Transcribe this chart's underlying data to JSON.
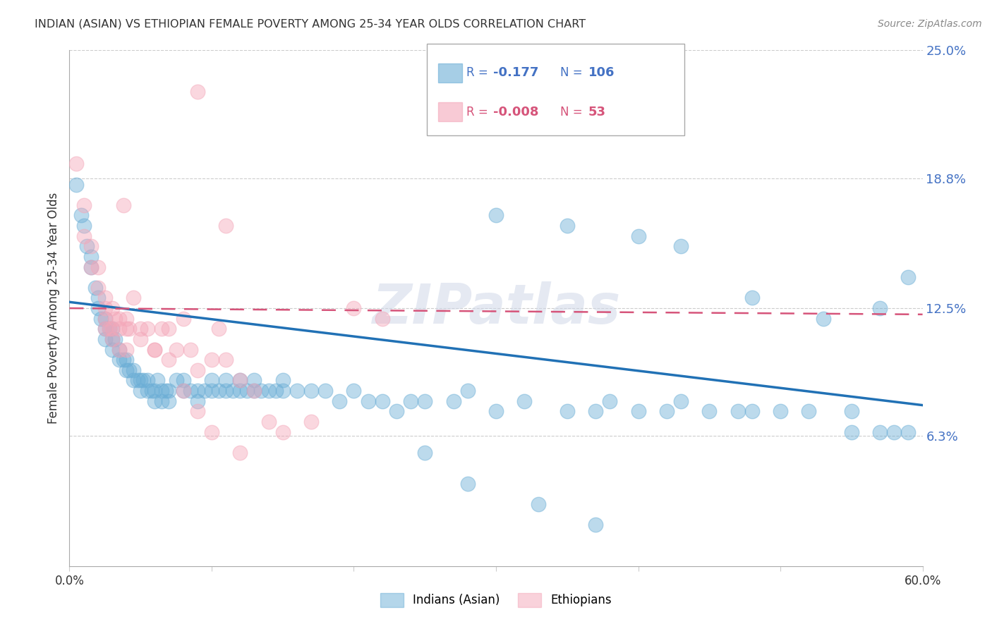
{
  "title": "INDIAN (ASIAN) VS ETHIOPIAN FEMALE POVERTY AMONG 25-34 YEAR OLDS CORRELATION CHART",
  "source": "Source: ZipAtlas.com",
  "ylabel": "Female Poverty Among 25-34 Year Olds",
  "xlim": [
    0.0,
    0.6
  ],
  "ylim": [
    0.0,
    0.25
  ],
  "xticks": [
    0.0,
    0.1,
    0.2,
    0.3,
    0.4,
    0.5,
    0.6
  ],
  "xticklabels": [
    "0.0%",
    "",
    "",
    "",
    "",
    "",
    "60.0%"
  ],
  "ytick_right_labels": [
    "25.0%",
    "18.8%",
    "12.5%",
    "6.3%"
  ],
  "ytick_right_values": [
    0.25,
    0.188,
    0.125,
    0.063
  ],
  "grid_color": "#cccccc",
  "background_color": "#ffffff",
  "blue_color": "#6baed6",
  "pink_color": "#f4a7b9",
  "blue_line_color": "#2171b5",
  "pink_line_color": "#d6547a",
  "watermark": "ZIPatlas",
  "legend_R_blue": "-0.177",
  "legend_N_blue": "106",
  "legend_R_pink": "-0.008",
  "legend_N_pink": "53",
  "legend_label_blue": "Indians (Asian)",
  "legend_label_pink": "Ethiopians",
  "blue_x": [
    0.005,
    0.008,
    0.01,
    0.012,
    0.015,
    0.015,
    0.018,
    0.02,
    0.02,
    0.022,
    0.025,
    0.025,
    0.025,
    0.028,
    0.03,
    0.03,
    0.03,
    0.032,
    0.035,
    0.035,
    0.038,
    0.04,
    0.04,
    0.042,
    0.045,
    0.045,
    0.048,
    0.05,
    0.05,
    0.052,
    0.055,
    0.055,
    0.058,
    0.06,
    0.06,
    0.062,
    0.065,
    0.065,
    0.068,
    0.07,
    0.07,
    0.075,
    0.08,
    0.08,
    0.085,
    0.09,
    0.09,
    0.095,
    0.1,
    0.1,
    0.105,
    0.11,
    0.11,
    0.115,
    0.12,
    0.12,
    0.125,
    0.13,
    0.13,
    0.135,
    0.14,
    0.145,
    0.15,
    0.15,
    0.16,
    0.17,
    0.18,
    0.19,
    0.2,
    0.21,
    0.22,
    0.23,
    0.24,
    0.25,
    0.27,
    0.28,
    0.3,
    0.32,
    0.35,
    0.37,
    0.38,
    0.4,
    0.42,
    0.43,
    0.45,
    0.47,
    0.48,
    0.5,
    0.52,
    0.55,
    0.55,
    0.57,
    0.58,
    0.59,
    0.3,
    0.35,
    0.4,
    0.43,
    0.48,
    0.53,
    0.57,
    0.59,
    0.25,
    0.28,
    0.33,
    0.37
  ],
  "blue_y": [
    0.185,
    0.17,
    0.165,
    0.155,
    0.145,
    0.15,
    0.135,
    0.13,
    0.125,
    0.12,
    0.12,
    0.115,
    0.11,
    0.115,
    0.115,
    0.11,
    0.105,
    0.11,
    0.105,
    0.1,
    0.1,
    0.1,
    0.095,
    0.095,
    0.09,
    0.095,
    0.09,
    0.09,
    0.085,
    0.09,
    0.09,
    0.085,
    0.085,
    0.085,
    0.08,
    0.09,
    0.085,
    0.08,
    0.085,
    0.085,
    0.08,
    0.09,
    0.085,
    0.09,
    0.085,
    0.085,
    0.08,
    0.085,
    0.085,
    0.09,
    0.085,
    0.09,
    0.085,
    0.085,
    0.085,
    0.09,
    0.085,
    0.085,
    0.09,
    0.085,
    0.085,
    0.085,
    0.09,
    0.085,
    0.085,
    0.085,
    0.085,
    0.08,
    0.085,
    0.08,
    0.08,
    0.075,
    0.08,
    0.08,
    0.08,
    0.085,
    0.075,
    0.08,
    0.075,
    0.075,
    0.08,
    0.075,
    0.075,
    0.08,
    0.075,
    0.075,
    0.075,
    0.075,
    0.075,
    0.075,
    0.065,
    0.065,
    0.065,
    0.065,
    0.17,
    0.165,
    0.16,
    0.155,
    0.13,
    0.12,
    0.125,
    0.14,
    0.055,
    0.04,
    0.03,
    0.02
  ],
  "pink_x": [
    0.005,
    0.01,
    0.01,
    0.015,
    0.015,
    0.02,
    0.02,
    0.025,
    0.025,
    0.025,
    0.028,
    0.03,
    0.03,
    0.032,
    0.035,
    0.035,
    0.038,
    0.04,
    0.04,
    0.042,
    0.045,
    0.05,
    0.055,
    0.06,
    0.065,
    0.07,
    0.075,
    0.08,
    0.085,
    0.09,
    0.1,
    0.105,
    0.11,
    0.12,
    0.13,
    0.14,
    0.15,
    0.17,
    0.2,
    0.22,
    0.09,
    0.11,
    0.025,
    0.03,
    0.035,
    0.04,
    0.05,
    0.06,
    0.07,
    0.08,
    0.09,
    0.1,
    0.12
  ],
  "pink_y": [
    0.195,
    0.175,
    0.16,
    0.155,
    0.145,
    0.145,
    0.135,
    0.13,
    0.125,
    0.12,
    0.115,
    0.125,
    0.115,
    0.12,
    0.115,
    0.12,
    0.175,
    0.12,
    0.115,
    0.115,
    0.13,
    0.115,
    0.115,
    0.105,
    0.115,
    0.115,
    0.105,
    0.12,
    0.105,
    0.095,
    0.1,
    0.115,
    0.1,
    0.09,
    0.085,
    0.07,
    0.065,
    0.07,
    0.125,
    0.12,
    0.23,
    0.165,
    0.115,
    0.11,
    0.105,
    0.105,
    0.11,
    0.105,
    0.1,
    0.085,
    0.075,
    0.065,
    0.055
  ]
}
